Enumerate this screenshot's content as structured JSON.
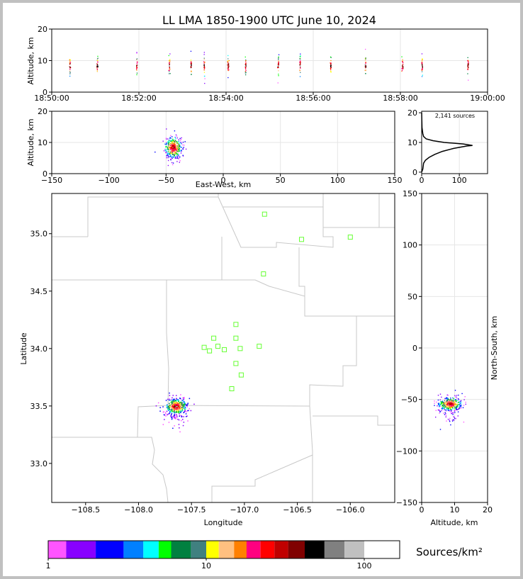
{
  "title": "LL LMA 1850-1900 UTC June 10, 2024",
  "chart_data": [
    {
      "id": "time-altitude",
      "type": "scatter",
      "ylabel": "Altitude, km",
      "ylim": [
        0,
        20
      ],
      "yticks": [
        "0",
        "10",
        "20"
      ],
      "xticks": [
        "18:50:00",
        "18:52:00",
        "18:54:00",
        "18:56:00",
        "18:58:00",
        "19:00:00"
      ],
      "flash_times_minutes": [
        0.42,
        1.05,
        1.95,
        2.7,
        3.2,
        3.5,
        4.05,
        4.45,
        5.2,
        5.7,
        6.4,
        7.2,
        8.05,
        8.5,
        9.55
      ],
      "grid": true
    },
    {
      "id": "ew-altitude",
      "type": "scatter",
      "xlabel": "East-West, km",
      "ylabel": "Altitude, km",
      "xlim": [
        -150,
        150
      ],
      "ylim": [
        0,
        20
      ],
      "xticks": [
        "−150",
        "−100",
        "−50",
        "0",
        "50",
        "100",
        "150"
      ],
      "yticks": [
        "0",
        "10",
        "20"
      ],
      "cluster_center": {
        "x": -44,
        "alt": 8.5
      },
      "grid": true
    },
    {
      "id": "altitude-histogram",
      "type": "line",
      "annotation": "2,141 sources",
      "xticks": [
        "0",
        "100"
      ],
      "yticks": [
        "0",
        "10",
        "20"
      ],
      "curve": [
        [
          0,
          0
        ],
        [
          3,
          1
        ],
        [
          5,
          3
        ],
        [
          10,
          4
        ],
        [
          20,
          5
        ],
        [
          35,
          6
        ],
        [
          55,
          7
        ],
        [
          85,
          8
        ],
        [
          120,
          8.8
        ],
        [
          135,
          9
        ],
        [
          110,
          9.5
        ],
        [
          60,
          10
        ],
        [
          30,
          10.6
        ],
        [
          12,
          11.2
        ],
        [
          5,
          12
        ],
        [
          3,
          13
        ],
        [
          1,
          15
        ],
        [
          0,
          20
        ]
      ]
    },
    {
      "id": "plan-map",
      "type": "scatter",
      "xlabel": "Longitude",
      "ylabel": "Latitude",
      "xlim": [
        -108.82,
        -105.58
      ],
      "ylim": [
        32.66,
        35.35
      ],
      "xticks": [
        "−108.5",
        "−108.0",
        "−107.5",
        "−107.0",
        "−106.5",
        "−106.0"
      ],
      "yticks": [
        "33.0",
        "33.5",
        "34.0",
        "34.5",
        "35.0"
      ],
      "stations": [
        [
          -108.63,
          35.17
        ],
        [
          -106.46,
          34.95
        ],
        [
          -106.0,
          34.97
        ],
        [
          -106.82,
          34.65
        ],
        [
          -107.08,
          34.21
        ],
        [
          -107.08,
          34.09
        ],
        [
          -107.29,
          34.09
        ],
        [
          -107.38,
          34.01
        ],
        [
          -107.33,
          33.98
        ],
        [
          -107.25,
          34.02
        ],
        [
          -107.19,
          33.99
        ],
        [
          -107.04,
          34.0
        ],
        [
          -106.86,
          34.02
        ],
        [
          -107.08,
          33.87
        ],
        [
          -107.03,
          33.77
        ],
        [
          -107.12,
          33.65
        ],
        [
          -106.81,
          35.17
        ]
      ],
      "cluster_center": {
        "lon": -107.65,
        "lat": 33.5
      }
    },
    {
      "id": "altitude-ns",
      "type": "scatter",
      "xlabel": "Altitude, km",
      "ylabel": "North-South, km",
      "xlim": [
        0,
        20
      ],
      "ylim": [
        -150,
        150
      ],
      "xticks": [
        "0",
        "10",
        "20"
      ],
      "yticks": [
        "−150",
        "−100",
        "−50",
        "0",
        "50",
        "100",
        "150"
      ],
      "cluster_center": {
        "alt": 8.5,
        "ns": -54
      }
    }
  ],
  "colorbar": {
    "label": "Sources/km²",
    "tick_labels": [
      "1",
      "10",
      "100"
    ],
    "colors": [
      "#ff55ff",
      "#8800ff",
      "#0000ff",
      "#0080ff",
      "#00ffff",
      "#00ff00",
      "#008040",
      "#408080",
      "#ffff00",
      "#ffc080",
      "#ff8000",
      "#ff0080",
      "#ff0000",
      "#c00000",
      "#800000",
      "#000000",
      "#808080",
      "#c0c0c0",
      "#ffffff"
    ]
  },
  "colors": {
    "station": "#66ff33",
    "border": "#c8c8c8",
    "grid": "#e6e6e6"
  }
}
